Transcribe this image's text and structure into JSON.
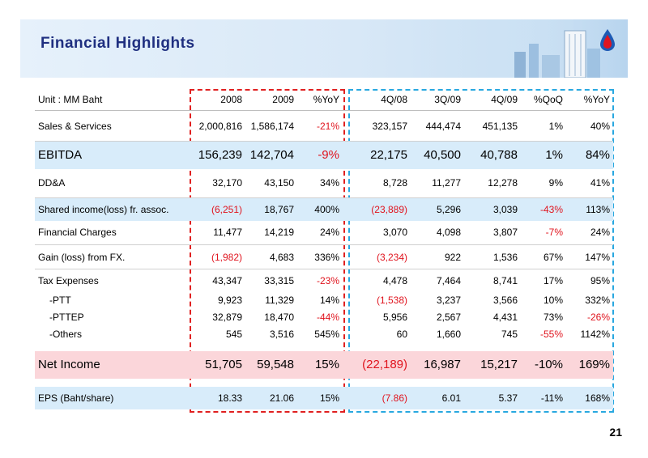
{
  "title": "Financial Highlights",
  "page_number": "21",
  "header": [
    "Unit : MM Baht",
    "2008",
    "2009",
    "%YoY",
    "4Q/08",
    "3Q/09",
    "4Q/09",
    "%QoQ",
    "%YoY"
  ],
  "rows": [
    {
      "label": "Sales & Services",
      "cells": [
        "2,000,816",
        "1,586,174",
        "-21%",
        "323,157",
        "444,474",
        "451,135",
        "1%",
        "40%"
      ],
      "red": [
        2
      ]
    },
    {
      "label": "EBITDA",
      "cells": [
        "156,239",
        "142,704",
        "-9%",
        "22,175",
        "40,500",
        "40,788",
        "1%",
        "84%"
      ],
      "red": [
        2
      ]
    },
    {
      "label": "DD&A",
      "cells": [
        "32,170",
        "43,150",
        "34%",
        "8,728",
        "11,277",
        "12,278",
        "9%",
        "41%"
      ],
      "red": []
    },
    {
      "label": "Shared income(loss) fr. assoc.",
      "cells": [
        "(6,251)",
        "18,767",
        "400%",
        "(23,889)",
        "5,296",
        "3,039",
        "-43%",
        "113%"
      ],
      "red": [
        0,
        3,
        6
      ]
    },
    {
      "label": "Financial Charges",
      "cells": [
        "11,477",
        "14,219",
        "24%",
        "3,070",
        "4,098",
        "3,807",
        "-7%",
        "24%"
      ],
      "red": [
        6
      ]
    },
    {
      "label": "Gain (loss) from FX.",
      "cells": [
        "(1,982)",
        "4,683",
        "336%",
        "(3,234)",
        "922",
        "1,536",
        "67%",
        "147%"
      ],
      "red": [
        0,
        3
      ]
    },
    {
      "label": "Tax Expenses",
      "cells": [
        "43,347",
        "33,315",
        "-23%",
        "4,478",
        "7,464",
        "8,741",
        "17%",
        "95%"
      ],
      "red": [
        2
      ]
    },
    {
      "label": "-PTT",
      "cells": [
        "9,923",
        "11,329",
        "14%",
        "(1,538)",
        "3,237",
        "3,566",
        "10%",
        "332%"
      ],
      "red": [
        3
      ]
    },
    {
      "label": "-PTTEP",
      "cells": [
        "32,879",
        "18,470",
        "-44%",
        "5,956",
        "2,567",
        "4,431",
        "73%",
        "-26%"
      ],
      "red": [
        2,
        7
      ]
    },
    {
      "label": "-Others",
      "cells": [
        "545",
        "3,516",
        "545%",
        "60",
        "1,660",
        "745",
        "-55%",
        "1142%"
      ],
      "red": [
        6
      ]
    },
    {
      "label": "Net Income",
      "cells": [
        "51,705",
        "59,548",
        "15%",
        "(22,189)",
        "16,987",
        "15,217",
        "-10%",
        "169%"
      ],
      "red": [
        3
      ]
    },
    {
      "label": "EPS (Baht/share)",
      "cells": [
        "18.33",
        "21.06",
        "15%",
        "(7.86)",
        "6.01",
        "5.37",
        "-11%",
        "168%"
      ],
      "red": [
        3
      ]
    }
  ]
}
